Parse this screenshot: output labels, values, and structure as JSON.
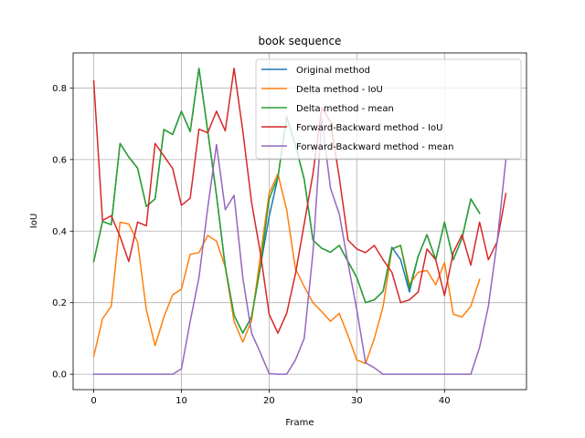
{
  "chart_data": {
    "type": "line",
    "title": "book sequence",
    "xlabel": "Frame",
    "ylabel": "IoU",
    "xlim": [
      -2.35,
      49.35
    ],
    "ylim": [
      -0.043,
      0.898
    ],
    "xticks": [
      0,
      10,
      20,
      30,
      40
    ],
    "yticks": [
      0.0,
      0.2,
      0.4,
      0.6,
      0.8
    ],
    "ytick_labels": [
      "0.0",
      "0.2",
      "0.4",
      "0.6",
      "0.8"
    ],
    "grid": true,
    "legend_position": "top-right",
    "series": [
      {
        "name": "Original method",
        "color": "#1f77b4",
        "x": [
          0,
          1,
          2,
          3,
          4,
          5,
          6,
          7,
          8,
          9,
          10,
          11,
          12,
          13,
          14,
          15,
          16,
          17,
          18,
          19,
          20,
          21,
          22,
          23,
          24,
          25,
          26,
          27,
          28,
          29,
          30,
          31,
          32,
          33,
          34,
          35,
          36,
          37,
          38,
          39,
          40,
          41,
          42,
          43,
          44
        ],
        "y": [
          0.315,
          0.427,
          0.418,
          0.645,
          0.607,
          0.576,
          0.469,
          0.49,
          0.684,
          0.67,
          0.735,
          0.678,
          0.855,
          0.68,
          0.5,
          0.3,
          0.165,
          0.115,
          0.16,
          0.3,
          0.44,
          0.55,
          0.72,
          0.64,
          0.545,
          0.375,
          0.352,
          0.341,
          0.36,
          0.315,
          0.27,
          0.2,
          0.208,
          0.232,
          0.355,
          0.32,
          0.23,
          0.33,
          0.39,
          0.32,
          0.425,
          0.32,
          0.38,
          0.49,
          0.45
        ]
      },
      {
        "name": "Delta method - IoU",
        "color": "#ff7f0e",
        "x": [
          0,
          1,
          2,
          3,
          4,
          5,
          6,
          7,
          8,
          9,
          10,
          11,
          12,
          13,
          14,
          15,
          16,
          17,
          18,
          19,
          20,
          21,
          22,
          23,
          24,
          25,
          26,
          27,
          28,
          29,
          30,
          31,
          32,
          33,
          34,
          35,
          36,
          37,
          38,
          39,
          40,
          41,
          42,
          43,
          44
        ],
        "y": [
          0.05,
          0.155,
          0.19,
          0.425,
          0.42,
          0.37,
          0.18,
          0.08,
          0.16,
          0.222,
          0.238,
          0.335,
          0.34,
          0.388,
          0.372,
          0.3,
          0.148,
          0.09,
          0.15,
          0.33,
          0.505,
          0.56,
          0.46,
          0.295,
          0.245,
          0.2,
          0.175,
          0.148,
          0.17,
          0.108,
          0.04,
          0.03,
          0.1,
          0.19,
          0.35,
          0.36,
          0.25,
          0.285,
          0.29,
          0.25,
          0.312,
          0.168,
          0.16,
          0.19,
          0.265
        ]
      },
      {
        "name": "Delta method - mean",
        "color": "#2ca02c",
        "x": [
          0,
          1,
          2,
          3,
          4,
          5,
          6,
          7,
          8,
          9,
          10,
          11,
          12,
          13,
          14,
          15,
          16,
          17,
          18,
          19,
          20,
          21,
          22,
          23,
          24,
          25,
          26,
          27,
          28,
          29,
          30,
          31,
          32,
          33,
          34,
          35,
          36,
          37,
          38,
          39,
          40,
          41,
          42,
          43,
          44
        ],
        "y": [
          0.315,
          0.427,
          0.418,
          0.645,
          0.607,
          0.576,
          0.469,
          0.49,
          0.684,
          0.67,
          0.735,
          0.678,
          0.855,
          0.68,
          0.5,
          0.3,
          0.165,
          0.115,
          0.16,
          0.3,
          0.49,
          0.55,
          0.72,
          0.64,
          0.545,
          0.375,
          0.352,
          0.341,
          0.36,
          0.315,
          0.27,
          0.2,
          0.208,
          0.232,
          0.35,
          0.36,
          0.24,
          0.33,
          0.39,
          0.32,
          0.425,
          0.32,
          0.38,
          0.49,
          0.45
        ]
      },
      {
        "name": "Forward-Backward method - IoU",
        "color": "#d62728",
        "x": [
          0,
          1,
          2,
          3,
          4,
          5,
          6,
          7,
          8,
          9,
          10,
          11,
          12,
          13,
          14,
          15,
          16,
          17,
          18,
          19,
          20,
          21,
          22,
          23,
          24,
          25,
          26,
          27,
          28,
          29,
          30,
          31,
          32,
          33,
          34,
          35,
          36,
          37,
          38,
          39,
          40,
          41,
          42,
          43,
          44,
          45,
          46,
          47
        ],
        "y": [
          0.82,
          0.43,
          0.443,
          0.385,
          0.315,
          0.425,
          0.415,
          0.645,
          0.61,
          0.575,
          0.472,
          0.492,
          0.685,
          0.675,
          0.735,
          0.68,
          0.855,
          0.68,
          0.48,
          0.34,
          0.168,
          0.115,
          0.17,
          0.28,
          0.42,
          0.56,
          0.745,
          0.705,
          0.55,
          0.375,
          0.35,
          0.34,
          0.36,
          0.32,
          0.285,
          0.2,
          0.208,
          0.23,
          0.35,
          0.32,
          0.22,
          0.34,
          0.39,
          0.305,
          0.425,
          0.32,
          0.37,
          0.505
        ]
      },
      {
        "name": "Forward-Backward method - mean",
        "color": "#9467bd",
        "x": [
          0,
          1,
          2,
          3,
          4,
          5,
          6,
          7,
          8,
          9,
          10,
          11,
          12,
          13,
          14,
          15,
          16,
          17,
          18,
          19,
          20,
          21,
          22,
          23,
          24,
          25,
          26,
          27,
          28,
          29,
          30,
          31,
          32,
          33,
          34,
          35,
          36,
          37,
          38,
          39,
          40,
          41,
          42,
          43,
          44,
          45,
          46,
          47
        ],
        "y": [
          0,
          0,
          0,
          0,
          0,
          0,
          0,
          0,
          0,
          0,
          0.015,
          0.148,
          0.27,
          0.465,
          0.642,
          0.46,
          0.5,
          0.27,
          0.115,
          0.06,
          0.002,
          0,
          0,
          0.04,
          0.1,
          0.34,
          0.715,
          0.52,
          0.448,
          0.31,
          0.18,
          0.032,
          0.018,
          0,
          0,
          0,
          0,
          0,
          0,
          0,
          0,
          0,
          0,
          0,
          0.075,
          0.19,
          0.37,
          0.6
        ]
      }
    ]
  }
}
